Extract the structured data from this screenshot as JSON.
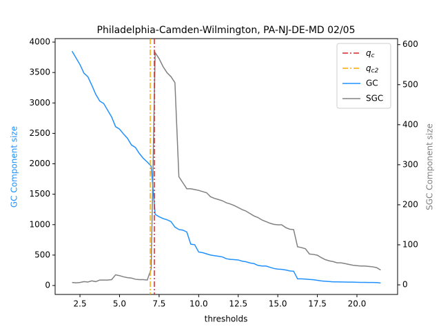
{
  "chart_data": {
    "type": "line",
    "title": "Philadelphia-Camden-Wilmington, PA-NJ-DE-MD 02/05",
    "xlabel": "thresholds",
    "ylabel": "GC Component size",
    "y2label": "SGC Component size",
    "ylabel_color": "#1e90ff",
    "y2label_color": "#808080",
    "xlim": [
      0.93,
      22.57
    ],
    "ylim": [
      -147,
      4057
    ],
    "y2lim": [
      -24,
      615
    ],
    "xticks": [
      {
        "value": 2.5,
        "label": "2.5"
      },
      {
        "value": 5,
        "label": "5.0"
      },
      {
        "value": 7.5,
        "label": "7.5"
      },
      {
        "value": 10,
        "label": "10.0"
      },
      {
        "value": 12.5,
        "label": "12.5"
      },
      {
        "value": 15,
        "label": "15.0"
      },
      {
        "value": 17.5,
        "label": "17.5"
      },
      {
        "value": 20,
        "label": "20.0"
      }
    ],
    "yticks": [
      0,
      500,
      1000,
      1500,
      2000,
      2500,
      3000,
      3500,
      4000
    ],
    "y2ticks": [
      0,
      100,
      200,
      300,
      400,
      500,
      600
    ],
    "legend": "upper right",
    "vlines": [
      {
        "name": "qc",
        "x": 7.2,
        "color": "#d62728"
      },
      {
        "name": "qc2",
        "x": 6.94,
        "color": "#ffa500"
      }
    ],
    "x": [
      2.0,
      2.25,
      2.5,
      2.75,
      3.0,
      3.25,
      3.5,
      3.75,
      4.0,
      4.25,
      4.5,
      4.75,
      5.0,
      5.25,
      5.5,
      5.75,
      6.0,
      6.25,
      6.5,
      6.75,
      7.0,
      7.25,
      7.5,
      7.75,
      8.0,
      8.25,
      8.5,
      8.75,
      9.0,
      9.25,
      9.5,
      9.75,
      10.0,
      10.25,
      10.5,
      10.75,
      11.0,
      11.25,
      11.5,
      11.75,
      12.0,
      12.25,
      12.5,
      12.75,
      13.0,
      13.25,
      13.5,
      13.75,
      14.0,
      14.25,
      14.5,
      14.75,
      15.0,
      15.25,
      15.5,
      15.75,
      16.0,
      16.25,
      16.5,
      16.75,
      17.0,
      17.25,
      17.5,
      17.75,
      18.0,
      18.25,
      18.5,
      18.75,
      19.0,
      19.25,
      19.5,
      19.75,
      20.0,
      20.25,
      20.5,
      20.75,
      21.0,
      21.25,
      21.5
    ],
    "series": [
      {
        "name": "GC",
        "color": "#1e90ff",
        "values": [
          3850,
          3740,
          3630,
          3490,
          3430,
          3290,
          3140,
          3030,
          2990,
          2880,
          2770,
          2610,
          2570,
          2490,
          2420,
          2310,
          2270,
          2170,
          2090,
          2030,
          1960,
          1170,
          1130,
          1100,
          1080,
          1050,
          960,
          920,
          910,
          880,
          680,
          670,
          550,
          540,
          520,
          500,
          490,
          480,
          470,
          440,
          430,
          425,
          420,
          400,
          390,
          370,
          360,
          330,
          320,
          320,
          300,
          280,
          270,
          265,
          255,
          240,
          235,
          110,
          110,
          105,
          100,
          95,
          85,
          75,
          70,
          65,
          60,
          60,
          58,
          57,
          56,
          55,
          53,
          52,
          52,
          50,
          50,
          48,
          42
        ]
      },
      {
        "name": "SGC",
        "color": "#808080",
        "axis": "y2",
        "values": [
          6,
          5,
          6,
          8,
          7,
          10,
          8,
          12,
          12,
          12,
          13,
          25,
          23,
          20,
          18,
          17,
          14,
          13,
          13,
          12,
          40,
          580,
          565,
          545,
          530,
          520,
          505,
          270,
          255,
          240,
          240,
          238,
          236,
          233,
          230,
          220,
          216,
          213,
          210,
          205,
          202,
          198,
          193,
          188,
          184,
          178,
          172,
          168,
          162,
          158,
          154,
          151,
          150,
          150,
          143,
          139,
          138,
          95,
          93,
          90,
          77,
          76,
          74,
          68,
          63,
          60,
          58,
          55,
          55,
          53,
          51,
          49,
          48,
          47,
          47,
          46,
          45,
          43,
          37
        ]
      }
    ]
  }
}
